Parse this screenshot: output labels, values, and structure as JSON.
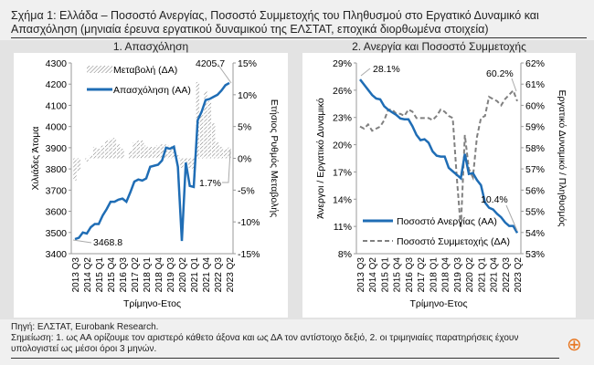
{
  "title": "Σχήμα 1: Ελλάδα – Ποσοστό Ανεργίας, Ποσοστό Συμμετοχής του Πληθυσμού στο Εργατικό Δυναμικό και Απασχόληση (μηνιαία έρευνα εργατικού δυναμικού της ΕΛΣΤΑΤ, εποχικά διορθωμένα στοιχεία)",
  "source": "Πηγή: ΕΛΣΤΑΤ, Eurobank Research.",
  "note": "Σημείωση: 1. ως ΑΑ ορίζουμε τον αριστερό κάθετο άξονα και ως ΔΑ τον αντίστοιχο δεξιό, 2. οι τριμηνιαίες παρατηρήσεις έχουν υπολογιστεί ως μέσοι όροι 3 μηνών.",
  "zoom_icon": "magnifier-plus-icon",
  "colors": {
    "primary": "#1f6db5",
    "secondary": "#808080",
    "panel": "#e3e3e3"
  },
  "chart_data": [
    {
      "type": "line+bar",
      "title": "1. Απασχόληση",
      "xlabel": "Τρίμηνο-Ετος",
      "ylabel": "Χιλιάδες Άτομα",
      "y2label": "Ετήσιος Ρυθμός Μεταβολής",
      "ylim": [
        3400,
        4300
      ],
      "yticks": [
        "3400",
        "3500",
        "3600",
        "3700",
        "3800",
        "3900",
        "4000",
        "4100",
        "4200",
        "4300"
      ],
      "y2lim": [
        -15,
        15
      ],
      "y2ticks": [
        "-15%",
        "-10%",
        "-5%",
        "0%",
        "5%",
        "10%",
        "15%"
      ],
      "xticks": [
        "2013 Q3",
        "2014 Q2",
        "2015 Q1",
        "2015 Q4",
        "2016 Q3",
        "2017 Q2",
        "2018 Q1",
        "2018 Q4",
        "2019 Q3",
        "2020 Q2",
        "2021 Q1",
        "2021 Q4",
        "2022 Q3",
        "2023 Q2"
      ],
      "annotations": [
        "4205.7",
        "3468.8",
        "1.7%"
      ],
      "series": [
        {
          "name": "Μεταβολή (ΔΑ)",
          "type": "bar",
          "axis": "right",
          "values": [
            -3.5,
            -2,
            0,
            -0.5,
            0.5,
            1.8,
            1.5,
            2,
            2.8,
            3,
            3.2,
            2.2,
            1.5,
            0,
            1.2,
            2.5,
            2.8,
            2.8,
            2,
            1.8,
            1.8,
            2,
            2.2,
            2.2,
            2,
            1.8,
            0.5,
            -1.5,
            -1,
            -1.5,
            -2,
            12,
            7,
            10.5,
            9,
            5.5,
            2.5,
            1.8,
            1.5,
            1.7
          ]
        },
        {
          "name": "Απασχόληση (ΑΑ)",
          "type": "line",
          "axis": "left",
          "values": [
            3468.8,
            3475,
            3500,
            3495,
            3525,
            3540,
            3540,
            3580,
            3610,
            3645,
            3645,
            3655,
            3660,
            3645,
            3690,
            3740,
            3750,
            3745,
            3755,
            3810,
            3815,
            3820,
            3840,
            3900,
            3895,
            3905,
            3810,
            3460,
            3830,
            3720,
            3715,
            4030,
            4070,
            4125,
            4130,
            4140,
            4150,
            4170,
            4195,
            4205.7
          ]
        }
      ]
    },
    {
      "type": "line",
      "title": "2. Ανεργία και Ποσοστό Συμμετοχής",
      "xlabel": "Τρίμηνο-Ετος",
      "ylabel": "Άνεργοι / Εργατικό Δυναμικό",
      "y2label": "Εργατικό Δυναμικό / Πληθυσμός",
      "ylim": [
        8,
        30
      ],
      "yticks": [
        "8%",
        "11%",
        "14%",
        "17%",
        "20%",
        "23%",
        "26%",
        "29%"
      ],
      "y2lim": [
        53,
        62
      ],
      "y2ticks": [
        "53%",
        "54%",
        "55%",
        "56%",
        "57%",
        "58%",
        "59%",
        "60%",
        "61%",
        "62%"
      ],
      "xticks": [
        "2013 Q3",
        "2014 Q2",
        "2015 Q1",
        "2015 Q4",
        "2016 Q3",
        "2017 Q2",
        "2018 Q1",
        "2018 Q4",
        "2019 Q3",
        "2020 Q2",
        "2021 Q1",
        "2021 Q4",
        "2022 Q3",
        "2023 Q2"
      ],
      "annotations": [
        "28.1%",
        "60.2%",
        "10.4%"
      ],
      "series": [
        {
          "name": "Ποσοστό Ανεργίας (ΑΑ)",
          "axis": "left",
          "values": [
            28.1,
            27.5,
            26.9,
            26.3,
            25.9,
            25.8,
            25.0,
            24.6,
            24.3,
            24.0,
            23.6,
            23.5,
            23.5,
            22.7,
            21.7,
            21.1,
            21.2,
            20.8,
            19.8,
            19.3,
            19.2,
            19.2,
            17.9,
            17.5,
            17.1,
            16.7,
            19.5,
            17.2,
            17.3,
            16.5,
            15.9,
            13.9,
            13.3,
            13.1,
            12.6,
            12.2,
            11.6,
            11.2,
            11.2,
            10.4
          ]
        },
        {
          "name": "Ποσοστό Συμμετοχής (ΔΑ)",
          "axis": "right",
          "values": [
            59.0,
            58.9,
            59.1,
            58.8,
            58.9,
            59.0,
            59.3,
            59.8,
            59.8,
            59.6,
            59.6,
            59.5,
            59.8,
            59.7,
            59.4,
            59.4,
            59.4,
            59.4,
            59.3,
            59.5,
            59.8,
            59.7,
            59.5,
            59.4,
            56.6,
            54.2,
            58.6,
            57.0,
            56.6,
            58.5,
            59.4,
            59.5,
            60.4,
            60.3,
            60.2,
            60.0,
            60.3,
            60.5,
            60.7,
            60.2
          ]
        }
      ]
    }
  ]
}
